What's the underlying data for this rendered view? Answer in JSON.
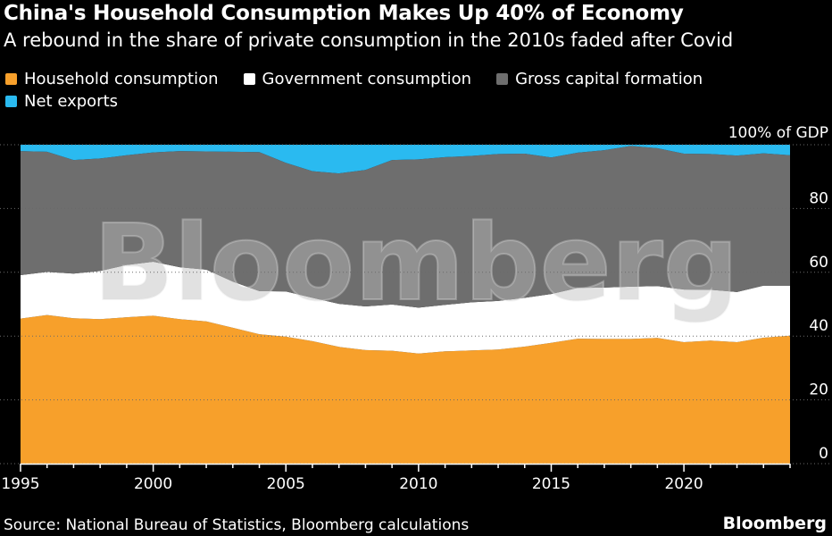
{
  "header": {
    "title": "China's Household Consumption Makes Up 40% of Economy",
    "subtitle": "A rebound in the share of private consumption in the 2010s faded after Covid"
  },
  "footer": {
    "source": "Source: National Bureau of Statistics, Bloomberg calculations",
    "brand": "Bloomberg"
  },
  "watermark": "Bloomberg",
  "colors": {
    "household": "#F7A02B",
    "government": "#FFFFFF",
    "capital": "#6E6E6E",
    "net_exports": "#2ABAF0",
    "background": "#000000",
    "axis_text": "#FFFFFF",
    "grid": "#6A6A6A"
  },
  "chart_data": {
    "type": "area",
    "stacked": true,
    "y_unit_label": "100% of GDP",
    "x": [
      1995,
      1996,
      1997,
      1998,
      1999,
      2000,
      2001,
      2002,
      2003,
      2004,
      2005,
      2006,
      2007,
      2008,
      2009,
      2010,
      2011,
      2012,
      2013,
      2014,
      2015,
      2016,
      2017,
      2018,
      2019,
      2020,
      2021,
      2022,
      2023,
      2024
    ],
    "series": [
      {
        "name": "Household consumption",
        "color_key": "household",
        "values": [
          45.5,
          46.6,
          45.6,
          45.3,
          45.9,
          46.4,
          45.3,
          44.6,
          42.6,
          40.6,
          39.8,
          38.4,
          36.6,
          35.6,
          35.4,
          34.5,
          35.2,
          35.5,
          35.8,
          36.7,
          37.9,
          39.2,
          39.1,
          39.1,
          39.4,
          38.1,
          38.6,
          38.1,
          39.5,
          40.1
        ]
      },
      {
        "name": "Government consumption",
        "color_key": "government",
        "values": [
          13.6,
          13.5,
          14.0,
          15.1,
          16.4,
          16.9,
          16.3,
          16.2,
          14.5,
          13.5,
          14.2,
          13.6,
          13.5,
          13.7,
          14.5,
          14.4,
          14.6,
          15.1,
          15.2,
          15.3,
          15.3,
          15.9,
          16.1,
          16.4,
          16.3,
          16.5,
          15.9,
          15.7,
          16.3,
          15.7
        ]
      },
      {
        "name": "Gross capital formation",
        "color_key": "capital",
        "values": [
          38.9,
          37.7,
          35.6,
          35.3,
          34.4,
          34.3,
          36.4,
          37.1,
          40.7,
          43.6,
          40.3,
          39.7,
          40.9,
          42.8,
          45.3,
          46.5,
          46.3,
          45.9,
          46.1,
          45.2,
          42.8,
          42.4,
          43.1,
          44.1,
          43.2,
          42.6,
          42.6,
          42.8,
          41.5,
          40.9
        ]
      },
      {
        "name": "Net exports",
        "color_key": "net_exports",
        "values": [
          2.0,
          2.2,
          4.8,
          4.3,
          3.3,
          2.4,
          2.0,
          2.1,
          2.2,
          2.3,
          5.7,
          8.3,
          9.0,
          7.9,
          4.8,
          4.6,
          3.9,
          3.5,
          2.9,
          2.8,
          4.0,
          2.5,
          1.7,
          0.4,
          1.1,
          2.8,
          2.9,
          3.4,
          2.7,
          3.3
        ]
      }
    ],
    "x_ticks": [
      1995,
      2000,
      2005,
      2010,
      2015,
      2020
    ],
    "y_ticks": [
      0,
      20,
      40,
      60,
      80,
      100
    ],
    "y_tick_labels": [
      "0",
      "20",
      "40",
      "60",
      "80",
      "100% of GDP"
    ],
    "xlim": [
      1995,
      2024
    ],
    "ylim": [
      0,
      100
    ],
    "grid": true,
    "legend_position": "top-left"
  }
}
